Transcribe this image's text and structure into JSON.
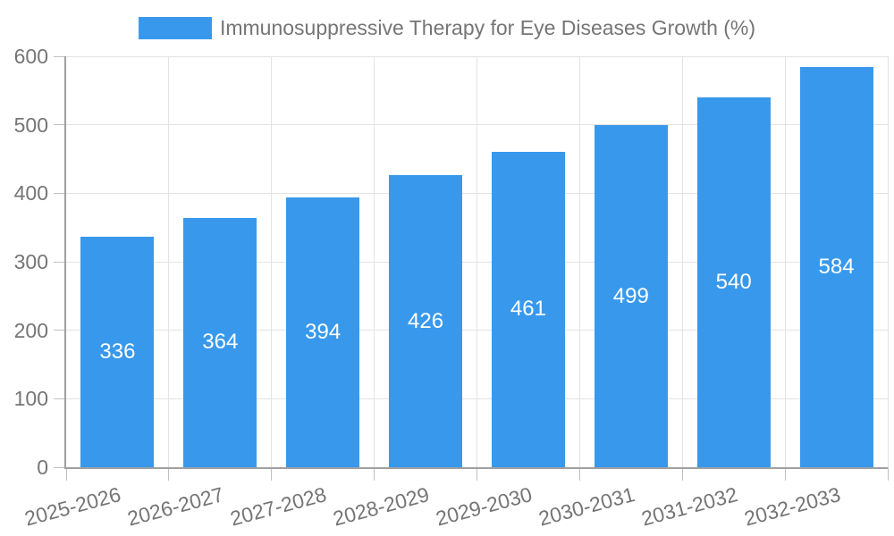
{
  "legend": {
    "label": "Immunosuppressive Therapy for Eye Diseases Growth (%)"
  },
  "chart_data": {
    "type": "bar",
    "title": "Immunosuppressive Therapy for Eye Diseases Growth (%)",
    "categories": [
      "2025-2026",
      "2026-2027",
      "2027-2028",
      "2028-2029",
      "2029-2030",
      "2030-2031",
      "2031-2032",
      "2032-2033"
    ],
    "values": [
      336,
      364,
      394,
      426,
      461,
      499,
      540,
      584
    ],
    "xlabel": "",
    "ylabel": "",
    "ylim": [
      0,
      600
    ],
    "yticks": [
      0,
      100,
      200,
      300,
      400,
      500,
      600
    ],
    "grid": true,
    "legend_position": "top",
    "value_labels": "centered-inside-bars",
    "x_label_rotation_deg": -15
  },
  "style": {
    "background": "#FFFFFF",
    "bar_color": "#3899EC",
    "grid_color": "#E3E3E3",
    "axis_color": "#A0A0A0",
    "tick_color": "#C0C0C0",
    "text_color": "#757575",
    "value_label_color": "#FFFFFF"
  }
}
